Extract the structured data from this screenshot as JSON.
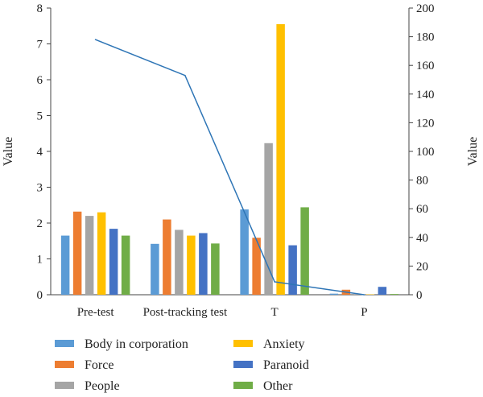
{
  "chart_data": {
    "type": "bar",
    "categories": [
      "Pre-test",
      "Post-tracking test",
      "T",
      "P"
    ],
    "series": [
      {
        "name": "Body in corporation",
        "values": [
          1.65,
          1.42,
          2.38,
          0.03
        ],
        "color": "#5b9bd5"
      },
      {
        "name": "Force",
        "values": [
          2.32,
          2.1,
          1.59,
          0.14
        ],
        "color": "#ed7d31"
      },
      {
        "name": "People",
        "values": [
          2.2,
          1.81,
          4.23,
          0.02
        ],
        "color": "#a5a5a5"
      },
      {
        "name": "Anxiety",
        "values": [
          2.3,
          1.65,
          7.55,
          0.01
        ],
        "color": "#ffc000"
      },
      {
        "name": "Paranoid",
        "values": [
          1.84,
          1.72,
          1.38,
          0.22
        ],
        "color": "#4472c4"
      },
      {
        "name": "Other",
        "values": [
          1.65,
          1.43,
          2.44,
          0.02
        ],
        "color": "#70ad47"
      }
    ],
    "line": {
      "axis": "right",
      "color": "#2e75b6",
      "values": [
        178,
        153,
        9,
        0
      ]
    },
    "ylabel": "Value",
    "y2label": "Value",
    "ylim": [
      0,
      8
    ],
    "y2lim": [
      0,
      200
    ],
    "yticks": [
      "0",
      "1",
      "2",
      "3",
      "4",
      "5",
      "6",
      "7",
      "8"
    ],
    "y2ticks": [
      "0",
      "20",
      "40",
      "60",
      "80",
      "100",
      "120",
      "140",
      "160",
      "180",
      "200"
    ],
    "grid": false,
    "legend_position": "bottom"
  }
}
